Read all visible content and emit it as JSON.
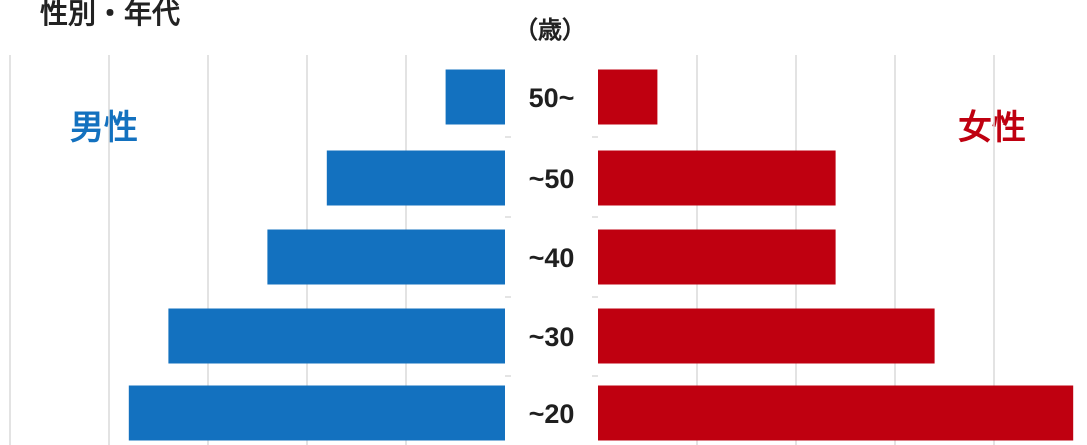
{
  "title": "性別・年代",
  "unit_label": "（歳）",
  "colors": {
    "male": "#1371bf",
    "female": "#bf0010",
    "grid": "#dadada",
    "text": "#1f1f1f"
  },
  "chart_data": {
    "type": "bar",
    "orientation": "horizontal-population-pyramid",
    "categories": [
      "50~",
      "~50",
      "~40",
      "~30",
      "~20"
    ],
    "series": [
      {
        "name": "男性",
        "values": [
          0.6,
          1.8,
          2.4,
          3.4,
          3.8
        ]
      },
      {
        "name": "女性",
        "values": [
          0.6,
          2.4,
          2.4,
          3.4,
          4.8
        ]
      }
    ],
    "xlim": [
      0,
      5
    ],
    "grid": true
  }
}
